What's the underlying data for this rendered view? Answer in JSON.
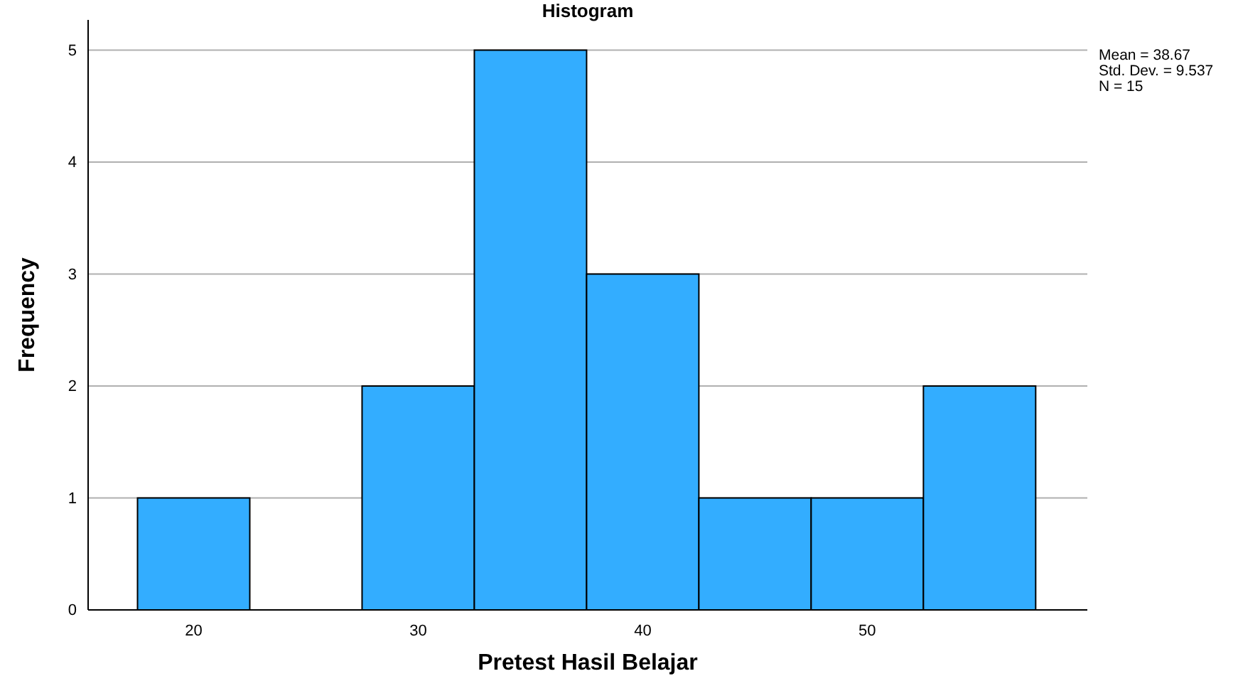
{
  "chart_data": {
    "type": "histogram",
    "title": "Histogram",
    "xlabel": "Pretest Hasil Belajar",
    "ylabel": "Frequency",
    "bins": [
      17.5,
      22.5,
      27.5,
      32.5,
      37.5,
      42.5,
      47.5,
      52.5,
      57.5
    ],
    "values": [
      1,
      0,
      2,
      5,
      3,
      1,
      1,
      2
    ],
    "color": "#33adff",
    "xlim": [
      15.3,
      59.8
    ],
    "xticks": [
      20,
      30,
      40,
      50
    ],
    "ylim": [
      0,
      5.27
    ],
    "yticks": [
      0,
      1,
      2,
      3,
      4,
      5
    ],
    "grid": "y",
    "annotations": [
      "Mean = 38.67",
      "Std. Dev. = 9.537",
      "N = 15"
    ]
  }
}
